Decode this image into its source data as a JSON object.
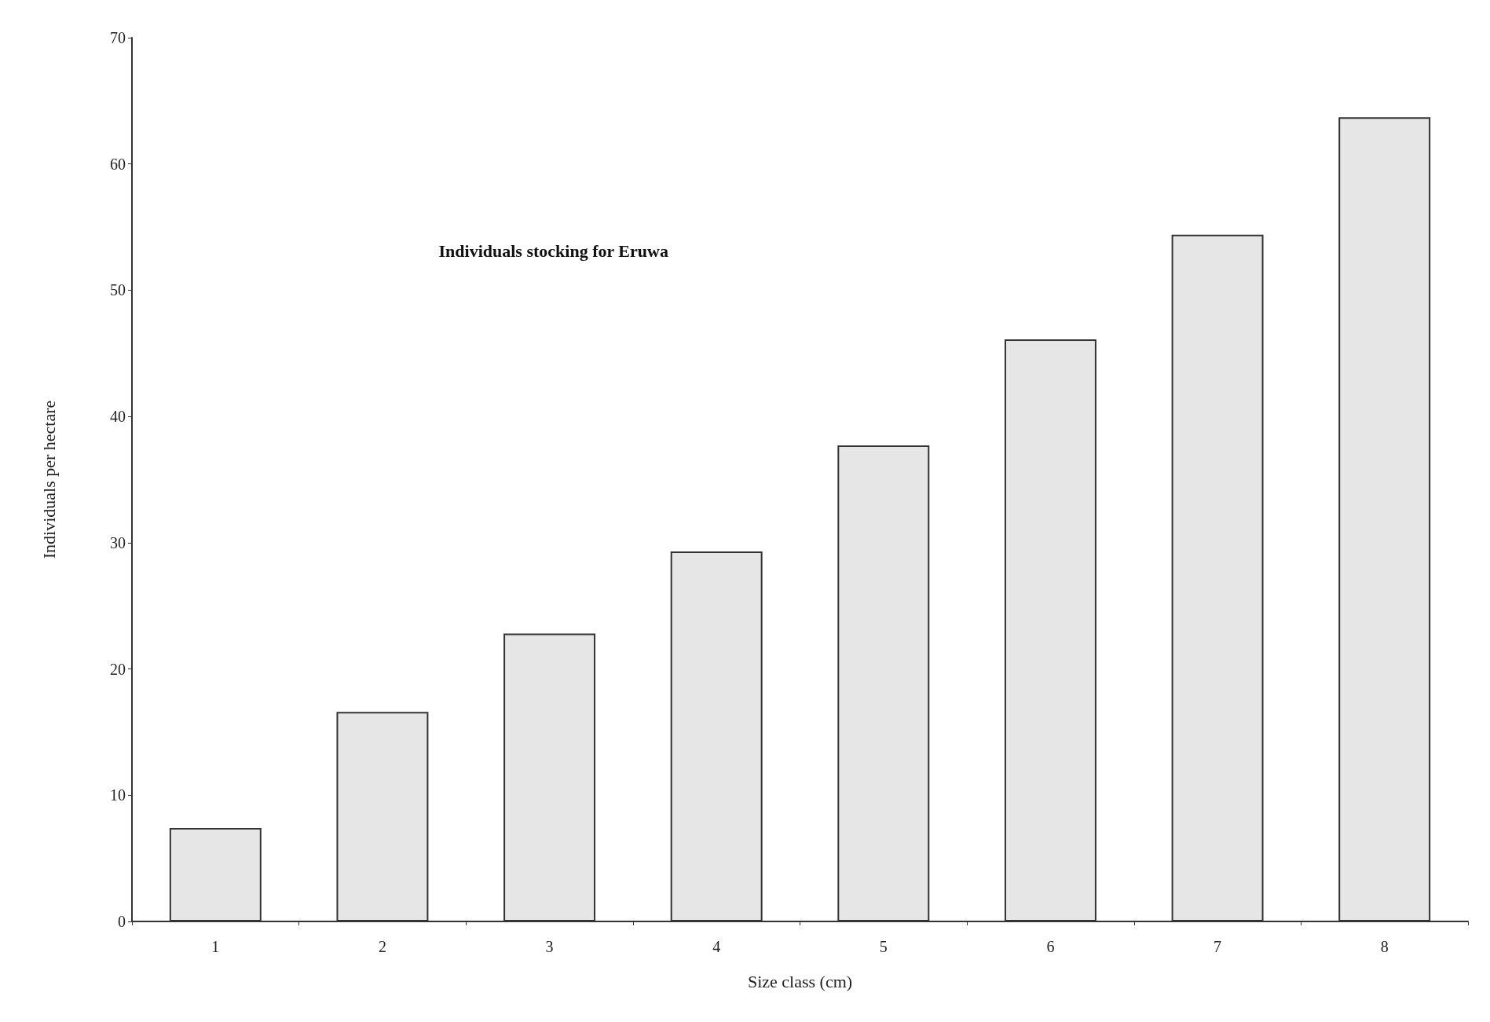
{
  "chart_data": {
    "type": "bar",
    "title": "Individuals stocking for Eruwa",
    "xlabel": "Size class (cm)",
    "ylabel": "Individuals per hectare",
    "categories": [
      "1",
      "2",
      "3",
      "4",
      "5",
      "6",
      "7",
      "8"
    ],
    "values": [
      7.4,
      16.6,
      22.8,
      29.3,
      37.7,
      46.1,
      54.4,
      63.7
    ],
    "color": "#e6e6e6",
    "ylim": [
      0,
      70
    ],
    "yticks": [
      0,
      10,
      20,
      30,
      40,
      50,
      60,
      70
    ],
    "grid": false
  }
}
